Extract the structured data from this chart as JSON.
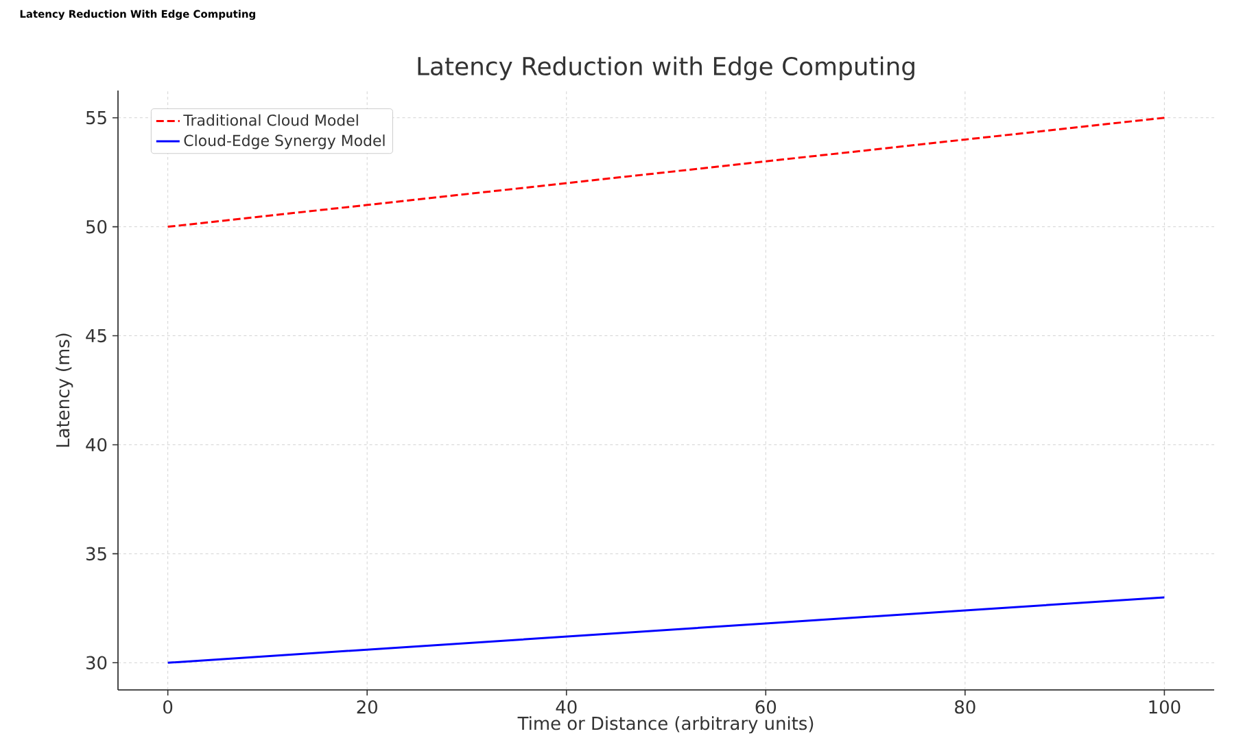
{
  "chart_data": {
    "type": "line",
    "title": "Latency Reduction with Edge Computing",
    "xlabel": "Time or Distance (arbitrary units)",
    "ylabel": "Latency (ms)",
    "annotations": [
      "Latency Reduction With Edge Computing"
    ],
    "x": [
      0,
      20,
      40,
      60,
      80,
      100
    ],
    "series": [
      {
        "name": "Traditional Cloud Model",
        "color": "#ff0000",
        "line_style": "dashed",
        "values": [
          50,
          51,
          52,
          53,
          54,
          55
        ]
      },
      {
        "name": "Cloud-Edge Synergy Model",
        "color": "#0000ff",
        "line_style": "solid",
        "values": [
          30,
          30.6,
          31.2,
          31.8,
          32.4,
          33
        ]
      }
    ],
    "xlim": [
      -5,
      105
    ],
    "ylim": [
      28.75,
      56.25
    ],
    "xticks": [
      0,
      20,
      40,
      60,
      80,
      100
    ],
    "yticks": [
      30,
      35,
      40,
      45,
      50,
      55
    ],
    "grid": true,
    "legend": "top left",
    "marker": "none"
  }
}
